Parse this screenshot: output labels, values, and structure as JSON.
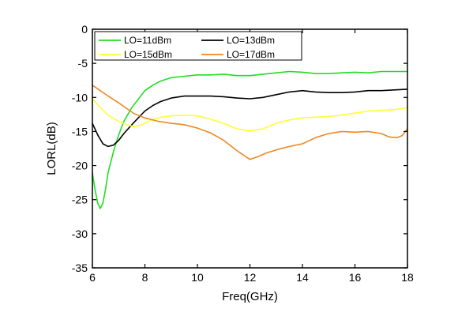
{
  "chart_data": {
    "type": "line",
    "xlabel": "Freq(GHz)",
    "ylabel": "LORL(dB)",
    "xlim": [
      6,
      18
    ],
    "ylim": [
      -35,
      0
    ],
    "xticks": [
      6,
      8,
      10,
      12,
      14,
      16,
      18
    ],
    "yticks": [
      0,
      -5,
      -10,
      -15,
      -20,
      -25,
      -30,
      -35
    ],
    "xtick_labels": [
      "6",
      "8",
      "10",
      "12",
      "14",
      "16",
      "18"
    ],
    "ytick_labels": [
      "0",
      "-5",
      "-10",
      "-15",
      "-20",
      "-25",
      "-30",
      "-35"
    ],
    "legend_position": "top",
    "grid": false,
    "series": [
      {
        "name": "LO=11dBm",
        "color": "#22dd22",
        "x": [
          6.0,
          6.1,
          6.2,
          6.3,
          6.4,
          6.5,
          6.6,
          6.8,
          7.0,
          7.2,
          7.5,
          7.8,
          8.0,
          8.3,
          8.6,
          9.0,
          9.5,
          10.0,
          10.5,
          11.0,
          11.5,
          12.0,
          12.5,
          13.0,
          13.5,
          14.0,
          14.5,
          15.0,
          15.5,
          16.0,
          16.5,
          17.0,
          17.5,
          18.0
        ],
        "y": [
          -21.0,
          -23.5,
          -25.5,
          -26.3,
          -25.5,
          -23.5,
          -21.0,
          -18.0,
          -15.5,
          -13.5,
          -11.5,
          -10.0,
          -9.0,
          -8.2,
          -7.6,
          -7.1,
          -6.9,
          -6.7,
          -6.7,
          -6.6,
          -6.8,
          -6.8,
          -6.6,
          -6.4,
          -6.2,
          -6.3,
          -6.5,
          -6.5,
          -6.4,
          -6.3,
          -6.4,
          -6.2,
          -6.2,
          -6.2
        ]
      },
      {
        "name": "LO=13dBm",
        "color": "#000000",
        "x": [
          6.0,
          6.2,
          6.4,
          6.6,
          6.8,
          7.0,
          7.2,
          7.5,
          7.8,
          8.0,
          8.3,
          8.6,
          9.0,
          9.5,
          10.0,
          10.5,
          11.0,
          11.5,
          12.0,
          12.5,
          13.0,
          13.5,
          14.0,
          14.5,
          15.0,
          15.5,
          16.0,
          16.5,
          17.0,
          17.5,
          18.0
        ],
        "y": [
          -13.8,
          -15.5,
          -16.8,
          -17.2,
          -17.0,
          -16.3,
          -15.3,
          -14.0,
          -12.8,
          -12.0,
          -11.2,
          -10.6,
          -10.1,
          -9.8,
          -9.8,
          -9.8,
          -9.9,
          -10.1,
          -10.2,
          -10.0,
          -9.6,
          -9.2,
          -9.0,
          -9.2,
          -9.3,
          -9.3,
          -9.2,
          -9.0,
          -9.0,
          -8.9,
          -8.8
        ]
      },
      {
        "name": "LO=15dBm",
        "color": "#ffff33",
        "x": [
          6.0,
          6.3,
          6.6,
          7.0,
          7.3,
          7.6,
          7.9,
          8.2,
          8.5,
          9.0,
          9.5,
          10.0,
          10.5,
          11.0,
          11.5,
          12.0,
          12.5,
          13.0,
          13.5,
          14.0,
          14.5,
          15.0,
          15.5,
          16.0,
          16.5,
          17.0,
          17.5,
          18.0
        ],
        "y": [
          -10.2,
          -11.5,
          -12.6,
          -13.5,
          -14.0,
          -14.3,
          -14.0,
          -13.4,
          -13.0,
          -12.7,
          -12.6,
          -12.7,
          -13.2,
          -13.8,
          -14.6,
          -14.9,
          -14.6,
          -13.8,
          -13.3,
          -13.0,
          -12.9,
          -12.8,
          -12.6,
          -12.3,
          -12.0,
          -11.9,
          -11.8,
          -11.5
        ]
      },
      {
        "name": "LO=17dBm",
        "color": "#ee8822",
        "x": [
          6.0,
          6.3,
          6.6,
          7.0,
          7.3,
          7.6,
          8.0,
          8.5,
          9.0,
          9.5,
          10.0,
          10.5,
          11.0,
          11.5,
          12.0,
          12.3,
          12.6,
          13.0,
          13.5,
          14.0,
          14.5,
          15.0,
          15.5,
          16.0,
          16.5,
          17.0,
          17.3,
          17.6,
          17.8,
          18.0
        ],
        "y": [
          -8.2,
          -9.0,
          -9.8,
          -10.8,
          -11.6,
          -12.4,
          -13.0,
          -13.5,
          -13.8,
          -14.0,
          -14.5,
          -15.2,
          -16.3,
          -17.8,
          -19.1,
          -18.7,
          -18.2,
          -17.7,
          -17.2,
          -16.8,
          -15.9,
          -15.3,
          -15.0,
          -15.1,
          -15.0,
          -15.3,
          -15.8,
          -15.9,
          -15.6,
          -14.6
        ]
      }
    ]
  }
}
